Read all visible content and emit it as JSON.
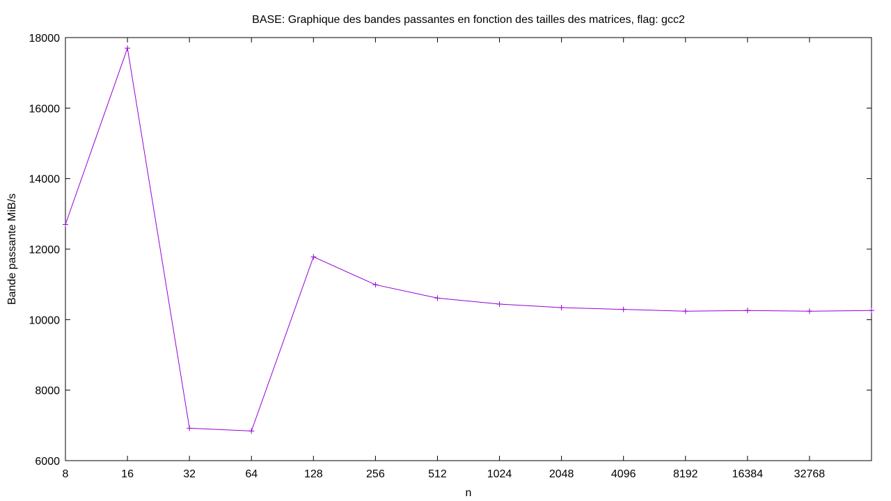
{
  "chart_data": {
    "type": "line",
    "title": "BASE: Graphique des bandes passantes en fonction des tailles des matrices, flag: gcc2",
    "xlabel": "n",
    "ylabel": "Bande passante MiB/s",
    "x_scale": "log2",
    "x_ticks": [
      "8",
      "16",
      "32",
      "64",
      "128",
      "256",
      "512",
      "1024",
      "2048",
      "4096",
      "8192",
      "16384",
      "32768"
    ],
    "x_range": [
      8,
      65536
    ],
    "ylim": [
      6000,
      18000
    ],
    "y_ticks": [
      "6000",
      "8000",
      "10000",
      "12000",
      "14000",
      "16000",
      "18000"
    ],
    "grid": false,
    "legend": "none",
    "series": [
      {
        "color": "#9400d3",
        "marker": "plus",
        "x": [
          8,
          16,
          32,
          64,
          128,
          256,
          512,
          1024,
          2048,
          4096,
          8192,
          16384,
          32768,
          65536
        ],
        "values": [
          12700,
          17700,
          6920,
          6840,
          11780,
          10990,
          10610,
          10440,
          10340,
          10290,
          10240,
          10260,
          10240,
          10260
        ]
      }
    ]
  }
}
